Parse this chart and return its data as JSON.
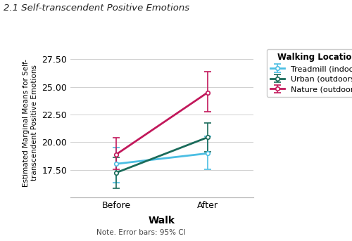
{
  "title": "2.1 Self-transcendent Positive Emotions",
  "xlabel": "Walk",
  "ylabel": "Estimated Marginal Means for Self-\ntranscendent Positive Emotions",
  "note": "Note. Error bars: 95% CI",
  "legend_title": "Walking Location",
  "xticklabels": [
    "Before",
    "After"
  ],
  "x": [
    0,
    1
  ],
  "series": [
    {
      "label": "Treadmill (indoors)",
      "color": "#4BBEE3",
      "means": [
        18.05,
        19.0
      ],
      "ci_lower": [
        16.35,
        17.55
      ],
      "ci_upper": [
        19.55,
        20.55
      ]
    },
    {
      "label": "Urban (outdoors)",
      "color": "#1A6B5A",
      "means": [
        17.25,
        20.45
      ],
      "ci_lower": [
        15.85,
        19.15
      ],
      "ci_upper": [
        18.65,
        21.75
      ]
    },
    {
      "label": "Nature (outdoors)",
      "color": "#C2185B",
      "means": [
        18.9,
        24.5
      ],
      "ci_lower": [
        17.55,
        22.75
      ],
      "ci_upper": [
        20.4,
        26.35
      ]
    }
  ],
  "ylim": [
    15.0,
    28.5
  ],
  "yticks": [
    17.5,
    20.0,
    22.5,
    25.0,
    27.5
  ],
  "xlim": [
    -0.5,
    1.5
  ],
  "background_color": "#ffffff",
  "grid_color": "#d0d0d0",
  "marker": "o",
  "markersize": 4,
  "linewidth": 2.0
}
